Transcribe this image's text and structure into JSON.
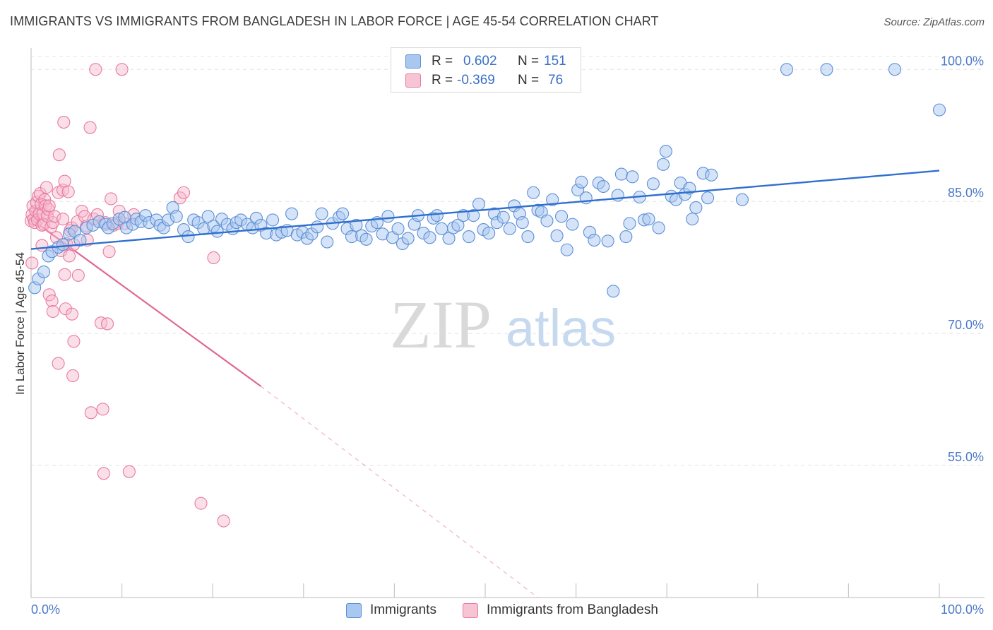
{
  "header": {
    "title": "IMMIGRANTS VS IMMIGRANTS FROM BANGLADESH IN LABOR FORCE | AGE 45-54 CORRELATION CHART",
    "source": "Source: ZipAtlas.com"
  },
  "watermark": {
    "zip": "ZIP",
    "atlas": "atlas"
  },
  "legend": {
    "rows": [
      {
        "r_label": "R =",
        "r_value": "0.602",
        "n_label": "N =",
        "n_value": "151"
      },
      {
        "r_label": "R =",
        "r_value": "-0.369",
        "n_label": "N =",
        "n_value": "76"
      }
    ]
  },
  "bottom_legend": {
    "immigrants": "Immigrants",
    "bangladesh": "Immigrants from Bangladesh"
  },
  "colors": {
    "blue_fill": "#a9c8f0",
    "blue_stroke": "#5b8fd6",
    "blue_line": "#2f6fcf",
    "pink_fill": "#f7b8cb",
    "pink_stroke": "#e87aa0",
    "pink_line": "#e06694",
    "tick_text": "#4a78c8",
    "grid": "#e3e3e3"
  },
  "chart_data": {
    "type": "scatter",
    "title": "IMMIGRANTS VS IMMIGRANTS FROM BANGLADESH IN LABOR FORCE | AGE 45-54 CORRELATION CHART",
    "xlabel": "",
    "ylabel": "In Labor Force | Age 45-54",
    "xlim": [
      0,
      100
    ],
    "ylim": [
      40,
      101.5
    ],
    "x_tick_labels": [
      "0.0%",
      "100.0%"
    ],
    "y_ticks": [
      55,
      70,
      85,
      100
    ],
    "y_tick_labels": [
      "55.0%",
      "70.0%",
      "85.0%",
      "100.0%"
    ],
    "grid": true,
    "legend_position": "top-center",
    "series": [
      {
        "name": "Immigrants",
        "r": 0.602,
        "n": 151,
        "trend": {
          "x": [
            0,
            100
          ],
          "y": [
            79.6,
            88.5
          ],
          "dashed_from": null
        },
        "points": [
          [
            0.4,
            75.2
          ],
          [
            0.8,
            76.2
          ],
          [
            1.4,
            77.0
          ],
          [
            1.9,
            78.8
          ],
          [
            2.3,
            79.3
          ],
          [
            3.0,
            79.8
          ],
          [
            3.5,
            80.1
          ],
          [
            4.2,
            81.3
          ],
          [
            4.8,
            81.6
          ],
          [
            5.4,
            80.6
          ],
          [
            6.1,
            82.0
          ],
          [
            6.8,
            82.3
          ],
          [
            7.5,
            82.7
          ],
          [
            8.2,
            82.4
          ],
          [
            8.5,
            82.0
          ],
          [
            9.0,
            82.5
          ],
          [
            9.7,
            83.0
          ],
          [
            10.3,
            83.2
          ],
          [
            10.5,
            82.0
          ],
          [
            11.2,
            82.4
          ],
          [
            11.6,
            83.0
          ],
          [
            12.1,
            82.7
          ],
          [
            12.6,
            83.4
          ],
          [
            13.0,
            82.6
          ],
          [
            13.8,
            82.9
          ],
          [
            14.2,
            82.3
          ],
          [
            14.6,
            82.0
          ],
          [
            15.1,
            82.9
          ],
          [
            15.6,
            84.3
          ],
          [
            16.0,
            83.3
          ],
          [
            16.8,
            81.8
          ],
          [
            17.3,
            81.0
          ],
          [
            17.9,
            82.9
          ],
          [
            18.4,
            82.6
          ],
          [
            19.0,
            81.9
          ],
          [
            19.5,
            83.3
          ],
          [
            20.1,
            82.2
          ],
          [
            20.5,
            81.6
          ],
          [
            21.0,
            83.0
          ],
          [
            21.6,
            82.4
          ],
          [
            22.2,
            81.9
          ],
          [
            22.6,
            82.6
          ],
          [
            23.1,
            82.9
          ],
          [
            23.8,
            82.4
          ],
          [
            24.4,
            82.0
          ],
          [
            24.8,
            83.1
          ],
          [
            25.3,
            82.3
          ],
          [
            25.9,
            81.4
          ],
          [
            26.6,
            82.9
          ],
          [
            27.0,
            81.2
          ],
          [
            27.6,
            81.5
          ],
          [
            28.2,
            81.7
          ],
          [
            28.7,
            83.6
          ],
          [
            29.3,
            81.2
          ],
          [
            29.9,
            81.5
          ],
          [
            30.4,
            80.8
          ],
          [
            30.9,
            81.3
          ],
          [
            31.5,
            82.1
          ],
          [
            32.0,
            83.6
          ],
          [
            32.6,
            80.4
          ],
          [
            33.2,
            82.5
          ],
          [
            33.9,
            83.2
          ],
          [
            34.3,
            83.6
          ],
          [
            34.8,
            81.9
          ],
          [
            35.3,
            81.0
          ],
          [
            35.8,
            82.3
          ],
          [
            36.4,
            81.1
          ],
          [
            36.9,
            80.7
          ],
          [
            37.5,
            82.2
          ],
          [
            38.1,
            82.6
          ],
          [
            38.7,
            81.3
          ],
          [
            39.3,
            83.3
          ],
          [
            39.8,
            80.9
          ],
          [
            40.4,
            81.9
          ],
          [
            40.9,
            80.2
          ],
          [
            41.5,
            80.8
          ],
          [
            42.2,
            82.4
          ],
          [
            42.6,
            83.4
          ],
          [
            43.2,
            81.4
          ],
          [
            43.9,
            80.9
          ],
          [
            44.3,
            83.1
          ],
          [
            44.7,
            83.4
          ],
          [
            45.2,
            81.9
          ],
          [
            46.0,
            80.8
          ],
          [
            46.5,
            82.0
          ],
          [
            47.0,
            82.3
          ],
          [
            47.6,
            83.4
          ],
          [
            48.2,
            81.0
          ],
          [
            48.7,
            83.4
          ],
          [
            49.3,
            84.7
          ],
          [
            49.8,
            81.8
          ],
          [
            50.4,
            81.4
          ],
          [
            51.0,
            83.6
          ],
          [
            51.3,
            82.6
          ],
          [
            52.0,
            83.2
          ],
          [
            52.7,
            81.9
          ],
          [
            53.2,
            84.5
          ],
          [
            53.8,
            83.6
          ],
          [
            54.1,
            82.6
          ],
          [
            54.7,
            81.0
          ],
          [
            55.3,
            86.0
          ],
          [
            55.8,
            84.0
          ],
          [
            56.2,
            83.8
          ],
          [
            56.8,
            82.8
          ],
          [
            57.4,
            85.2
          ],
          [
            57.9,
            81.1
          ],
          [
            58.4,
            83.3
          ],
          [
            59.0,
            79.5
          ],
          [
            59.6,
            82.4
          ],
          [
            60.2,
            86.3
          ],
          [
            60.6,
            87.2
          ],
          [
            61.1,
            85.4
          ],
          [
            61.5,
            81.5
          ],
          [
            62.0,
            80.6
          ],
          [
            62.5,
            87.1
          ],
          [
            63.0,
            86.7
          ],
          [
            63.5,
            80.5
          ],
          [
            64.1,
            74.8
          ],
          [
            64.6,
            85.7
          ],
          [
            65.0,
            88.1
          ],
          [
            65.5,
            81.0
          ],
          [
            65.9,
            82.5
          ],
          [
            66.2,
            87.8
          ],
          [
            67.0,
            85.5
          ],
          [
            67.5,
            82.9
          ],
          [
            68.0,
            83.0
          ],
          [
            68.5,
            87.0
          ],
          [
            69.1,
            82.0
          ],
          [
            69.6,
            89.2
          ],
          [
            69.9,
            90.7
          ],
          [
            70.5,
            85.6
          ],
          [
            71.0,
            85.2
          ],
          [
            71.5,
            87.1
          ],
          [
            72.0,
            85.8
          ],
          [
            72.5,
            86.5
          ],
          [
            72.8,
            83.0
          ],
          [
            73.2,
            84.3
          ],
          [
            74.0,
            88.2
          ],
          [
            74.5,
            85.4
          ],
          [
            74.9,
            88.0
          ],
          [
            78.3,
            85.2
          ],
          [
            83.2,
            100.0
          ],
          [
            87.6,
            100.0
          ],
          [
            95.1,
            100.0
          ],
          [
            100.0,
            95.4
          ]
        ]
      },
      {
        "name": "Immigrants from Bangladesh",
        "r": -0.369,
        "n": 76,
        "trend": {
          "x": [
            0,
            25.3
          ],
          "y": [
            83.0,
            64.0
          ],
          "dashed_to": [
            55.8,
            40.0
          ]
        },
        "points": [
          [
            0.0,
            82.8
          ],
          [
            0.1,
            83.5
          ],
          [
            0.2,
            84.5
          ],
          [
            0.3,
            83.0
          ],
          [
            0.4,
            82.6
          ],
          [
            0.5,
            83.9
          ],
          [
            0.6,
            84.9
          ],
          [
            0.7,
            82.9
          ],
          [
            0.8,
            85.6
          ],
          [
            0.9,
            83.6
          ],
          [
            1.0,
            85.9
          ],
          [
            1.1,
            84.7
          ],
          [
            1.2,
            82.3
          ],
          [
            1.3,
            83.6
          ],
          [
            1.4,
            82.4
          ],
          [
            1.5,
            85.2
          ],
          [
            1.6,
            84.5
          ],
          [
            1.7,
            86.6
          ],
          [
            1.8,
            83.3
          ],
          [
            1.9,
            84.1
          ],
          [
            2.0,
            84.5
          ],
          [
            2.2,
            82.1
          ],
          [
            2.4,
            82.6
          ],
          [
            2.6,
            83.3
          ],
          [
            2.8,
            80.9
          ],
          [
            3.0,
            86.0
          ],
          [
            3.1,
            90.3
          ],
          [
            3.3,
            79.4
          ],
          [
            3.5,
            86.3
          ],
          [
            3.7,
            87.3
          ],
          [
            3.9,
            80.2
          ],
          [
            4.1,
            86.1
          ],
          [
            4.3,
            81.7
          ],
          [
            4.5,
            82.0
          ],
          [
            4.7,
            80.1
          ],
          [
            0.1,
            78.0
          ],
          [
            1.2,
            80.0
          ],
          [
            2.0,
            74.4
          ],
          [
            2.3,
            73.7
          ],
          [
            2.4,
            72.5
          ],
          [
            3.5,
            83.0
          ],
          [
            3.6,
            94.0
          ],
          [
            3.7,
            76.7
          ],
          [
            3.8,
            72.8
          ],
          [
            4.2,
            78.8
          ],
          [
            4.5,
            72.2
          ],
          [
            4.6,
            65.2
          ],
          [
            4.7,
            69.1
          ],
          [
            5.1,
            82.7
          ],
          [
            5.2,
            76.6
          ],
          [
            5.6,
            83.9
          ],
          [
            5.9,
            83.3
          ],
          [
            6.1,
            82.2
          ],
          [
            6.2,
            80.6
          ],
          [
            6.5,
            93.4
          ],
          [
            6.6,
            61.0
          ],
          [
            6.9,
            83.0
          ],
          [
            7.1,
            100.0
          ],
          [
            7.3,
            83.5
          ],
          [
            7.7,
            71.2
          ],
          [
            7.9,
            61.4
          ],
          [
            8.0,
            54.1
          ],
          [
            8.2,
            82.6
          ],
          [
            8.4,
            71.1
          ],
          [
            8.6,
            79.3
          ],
          [
            8.8,
            85.3
          ],
          [
            9.1,
            82.3
          ],
          [
            9.5,
            82.5
          ],
          [
            9.7,
            83.9
          ],
          [
            10.0,
            100.0
          ],
          [
            10.3,
            82.5
          ],
          [
            10.8,
            54.3
          ],
          [
            11.3,
            83.5
          ],
          [
            3.0,
            66.6
          ],
          [
            16.4,
            85.4
          ],
          [
            16.8,
            86.0
          ],
          [
            18.7,
            50.7
          ],
          [
            20.1,
            78.6
          ],
          [
            21.2,
            48.7
          ]
        ]
      }
    ]
  }
}
